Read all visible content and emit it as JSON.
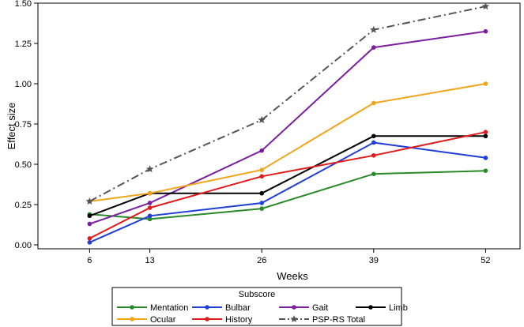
{
  "chart_data": {
    "type": "line",
    "xlabel": "Weeks",
    "ylabel": "Effect size",
    "x": [
      6,
      13,
      26,
      39,
      52
    ],
    "xlim": [
      0,
      56
    ],
    "ylim": [
      0.0,
      1.5
    ],
    "yticks": [
      "0.00",
      "0.25",
      "0.50",
      "0.75",
      "1.00",
      "1.25",
      "1.50"
    ],
    "xticks": [
      "6",
      "13",
      "26",
      "39",
      "52"
    ],
    "grid": false,
    "legend": {
      "title": "Subscore",
      "placement": "bottom"
    },
    "series": [
      {
        "name": "Mentation",
        "color": "#2a8a2a",
        "marker": "circle",
        "dash": "solid",
        "values": [
          0.19,
          0.16,
          0.225,
          0.44,
          0.46
        ]
      },
      {
        "name": "Bulbar",
        "color": "#1f3fd6",
        "marker": "circle",
        "dash": "solid",
        "values": [
          0.015,
          0.18,
          0.26,
          0.635,
          0.54
        ]
      },
      {
        "name": "Gait",
        "color": "#7a1fa0",
        "marker": "circle",
        "dash": "solid",
        "values": [
          0.13,
          0.26,
          0.585,
          1.225,
          1.325
        ]
      },
      {
        "name": "Limb",
        "color": "#000000",
        "marker": "circle",
        "dash": "solid",
        "values": [
          0.18,
          0.32,
          0.32,
          0.675,
          0.675
        ]
      },
      {
        "name": "Ocular",
        "color": "#f2a51a",
        "marker": "circle",
        "dash": "solid",
        "values": [
          0.27,
          0.32,
          0.465,
          0.88,
          1.0
        ]
      },
      {
        "name": "History",
        "color": "#e01b1b",
        "marker": "circle",
        "dash": "solid",
        "values": [
          0.04,
          0.23,
          0.425,
          0.555,
          0.7
        ]
      },
      {
        "name": "PSP-RS Total",
        "color": "#555555",
        "marker": "star",
        "dash": "dashdot",
        "values": [
          0.27,
          0.47,
          0.775,
          1.335,
          1.48
        ]
      }
    ]
  }
}
